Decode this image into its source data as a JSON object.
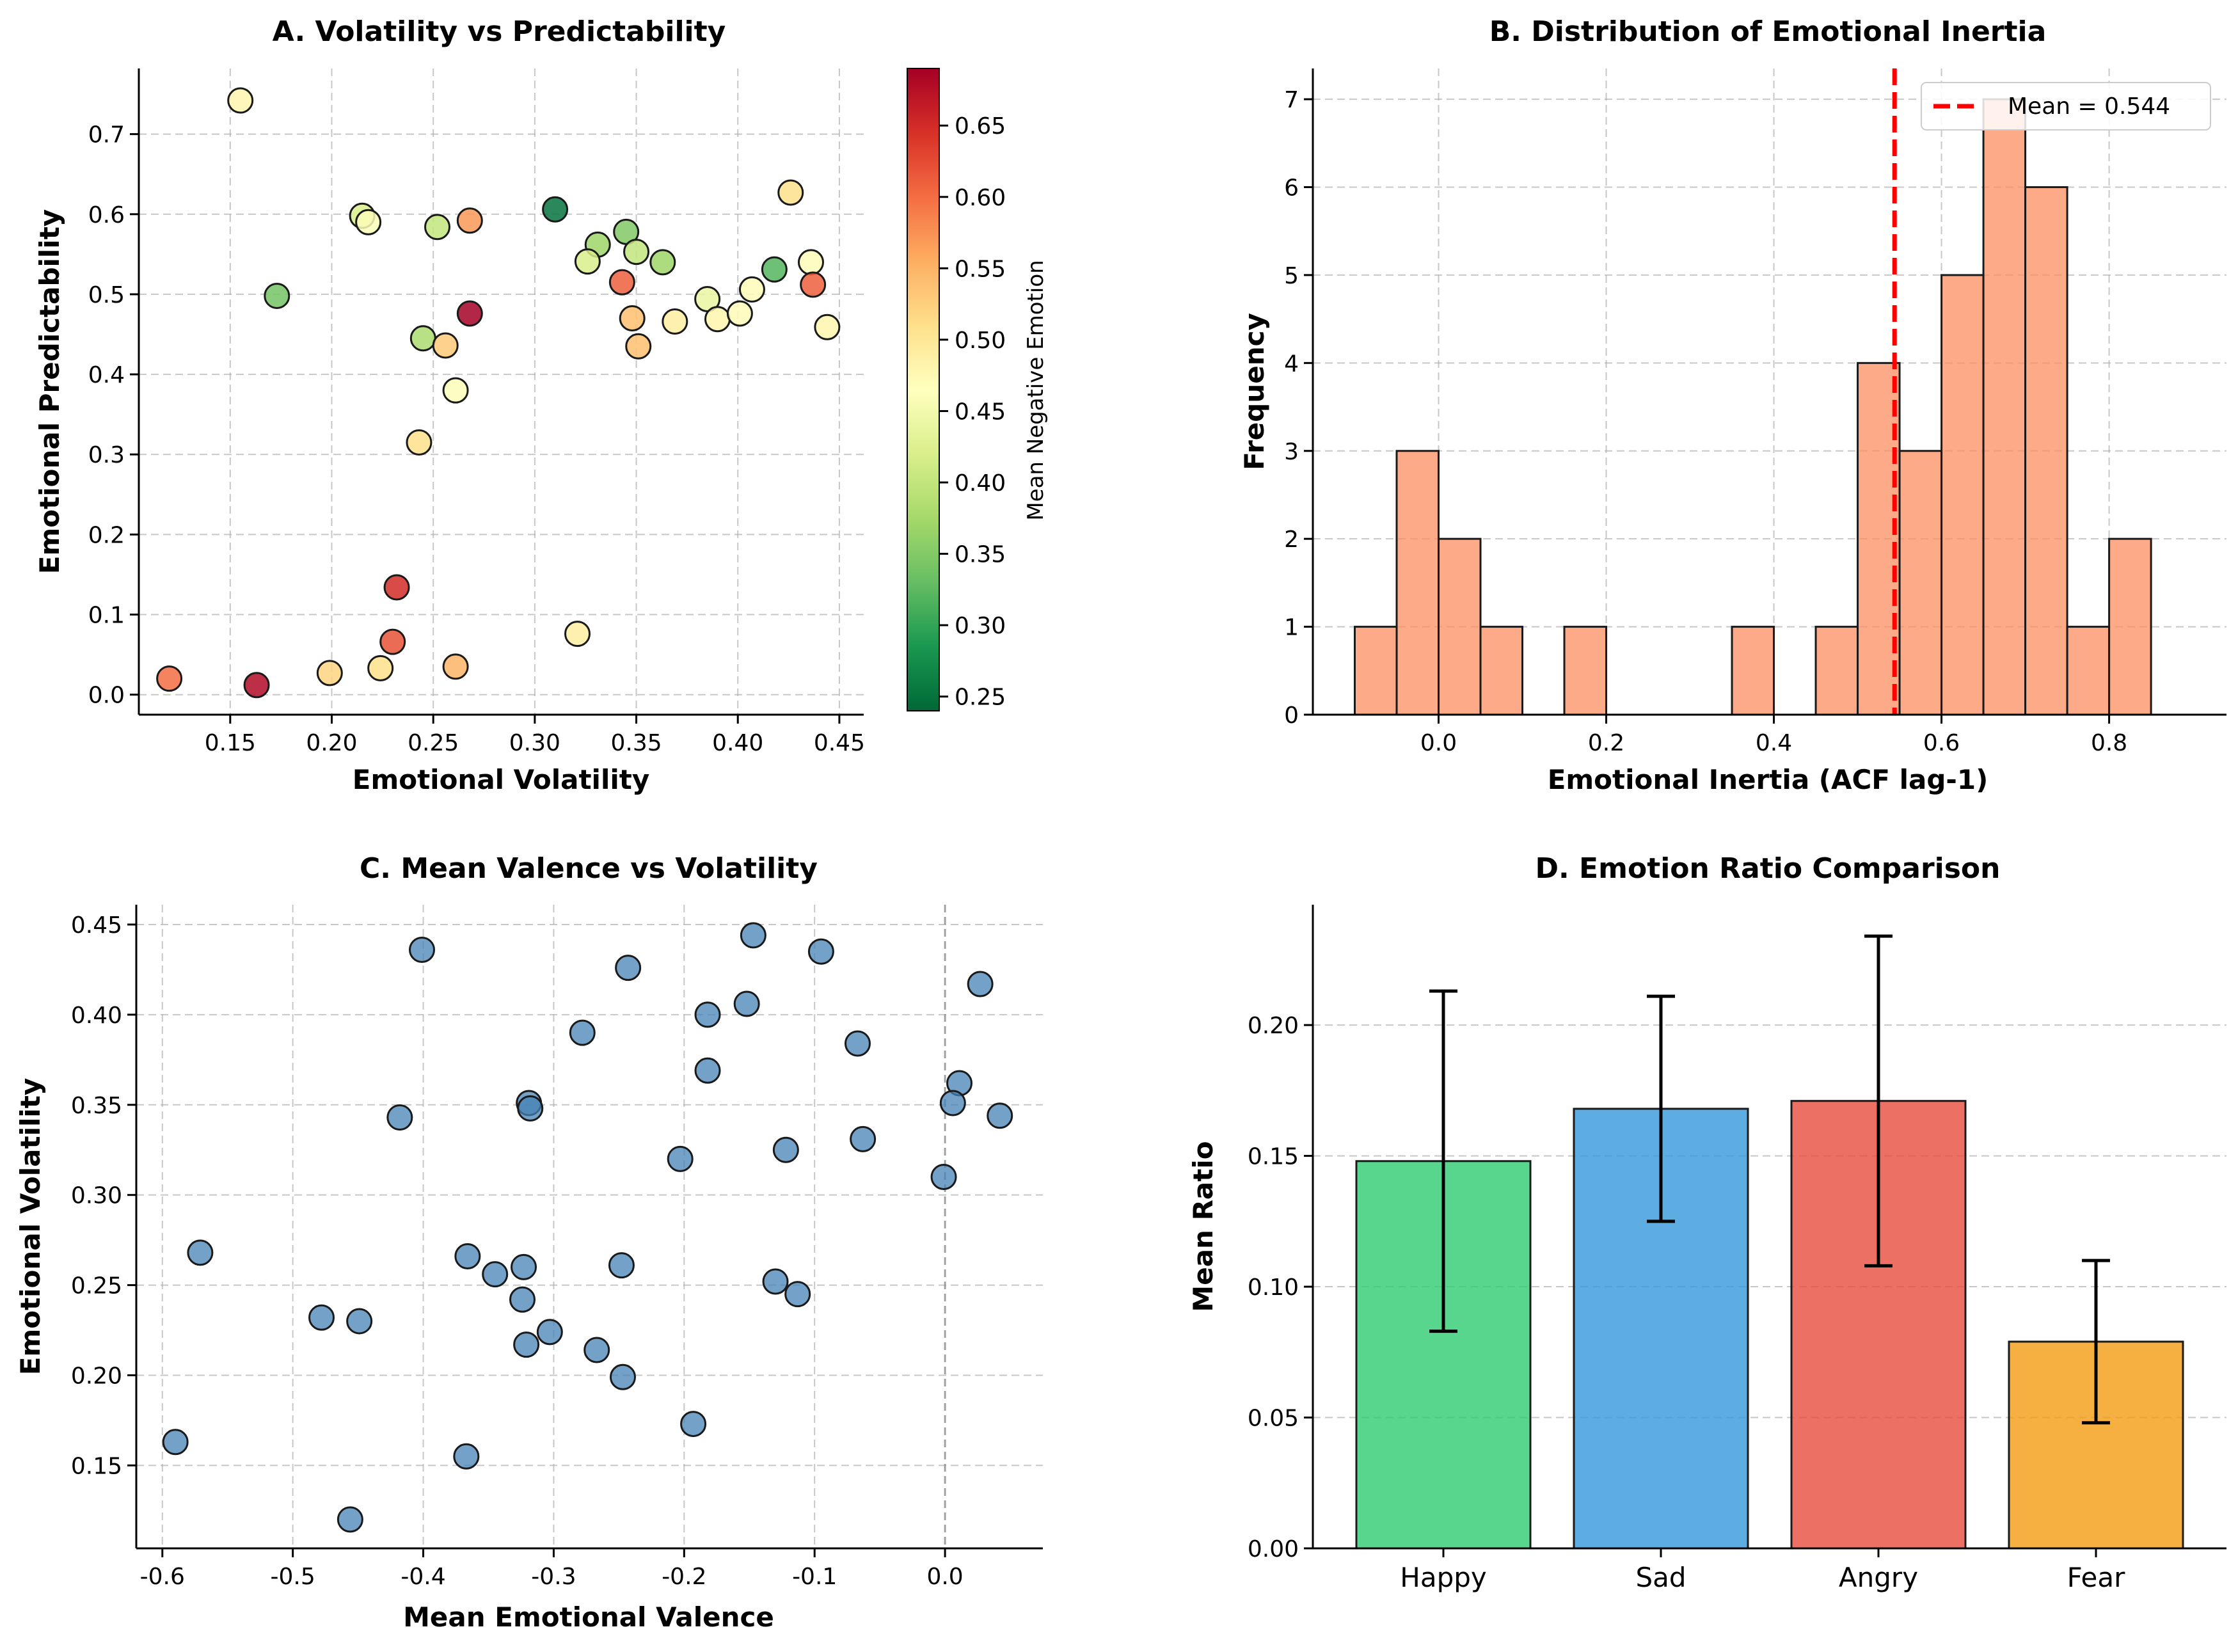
{
  "chart_data": [
    {
      "id": "A",
      "type": "scatter",
      "title": "A. Volatility vs Predictability",
      "xlabel": "Emotional Volatility",
      "ylabel": "Emotional Predictability",
      "xlim": [
        0.105,
        0.462
      ],
      "ylim": [
        -0.025,
        0.782
      ],
      "xticks": [
        "0.15",
        "0.20",
        "0.25",
        "0.30",
        "0.35",
        "0.40",
        "0.45"
      ],
      "xtick_values": [
        0.15,
        0.2,
        0.25,
        0.3,
        0.35,
        0.4,
        0.45
      ],
      "yticks": [
        "0.0",
        "0.1",
        "0.2",
        "0.3",
        "0.4",
        "0.5",
        "0.6",
        "0.7"
      ],
      "ytick_values": [
        0.0,
        0.1,
        0.2,
        0.3,
        0.4,
        0.5,
        0.6,
        0.7
      ],
      "colorbar": {
        "label": "Mean Negative Emotion",
        "colormap": "RdYlGn_r",
        "range": [
          0.24,
          0.69
        ],
        "ticks": [
          "0.25",
          "0.30",
          "0.35",
          "0.40",
          "0.45",
          "0.50",
          "0.55",
          "0.60",
          "0.65"
        ],
        "tick_values": [
          0.25,
          0.3,
          0.35,
          0.4,
          0.45,
          0.5,
          0.55,
          0.6,
          0.65
        ]
      },
      "points": [
        {
          "x": 0.155,
          "y": 0.742,
          "c": 0.48
        },
        {
          "x": 0.215,
          "y": 0.598,
          "c": 0.42
        },
        {
          "x": 0.218,
          "y": 0.59,
          "c": 0.46
        },
        {
          "x": 0.173,
          "y": 0.498,
          "c": 0.34
        },
        {
          "x": 0.252,
          "y": 0.584,
          "c": 0.4
        },
        {
          "x": 0.268,
          "y": 0.592,
          "c": 0.57
        },
        {
          "x": 0.31,
          "y": 0.606,
          "c": 0.25
        },
        {
          "x": 0.268,
          "y": 0.476,
          "c": 0.69
        },
        {
          "x": 0.245,
          "y": 0.445,
          "c": 0.38
        },
        {
          "x": 0.256,
          "y": 0.436,
          "c": 0.53
        },
        {
          "x": 0.261,
          "y": 0.38,
          "c": 0.46
        },
        {
          "x": 0.243,
          "y": 0.315,
          "c": 0.51
        },
        {
          "x": 0.331,
          "y": 0.562,
          "c": 0.37
        },
        {
          "x": 0.326,
          "y": 0.541,
          "c": 0.42
        },
        {
          "x": 0.345,
          "y": 0.578,
          "c": 0.35
        },
        {
          "x": 0.35,
          "y": 0.553,
          "c": 0.4
        },
        {
          "x": 0.363,
          "y": 0.54,
          "c": 0.37
        },
        {
          "x": 0.343,
          "y": 0.515,
          "c": 0.61
        },
        {
          "x": 0.348,
          "y": 0.47,
          "c": 0.54
        },
        {
          "x": 0.351,
          "y": 0.435,
          "c": 0.54
        },
        {
          "x": 0.369,
          "y": 0.466,
          "c": 0.49
        },
        {
          "x": 0.385,
          "y": 0.494,
          "c": 0.44
        },
        {
          "x": 0.39,
          "y": 0.469,
          "c": 0.48
        },
        {
          "x": 0.401,
          "y": 0.476,
          "c": 0.47
        },
        {
          "x": 0.407,
          "y": 0.506,
          "c": 0.47
        },
        {
          "x": 0.418,
          "y": 0.531,
          "c": 0.32
        },
        {
          "x": 0.426,
          "y": 0.627,
          "c": 0.51
        },
        {
          "x": 0.436,
          "y": 0.54,
          "c": 0.47
        },
        {
          "x": 0.437,
          "y": 0.512,
          "c": 0.61
        },
        {
          "x": 0.444,
          "y": 0.459,
          "c": 0.48
        },
        {
          "x": 0.232,
          "y": 0.134,
          "c": 0.65
        },
        {
          "x": 0.23,
          "y": 0.066,
          "c": 0.62
        },
        {
          "x": 0.321,
          "y": 0.076,
          "c": 0.49
        },
        {
          "x": 0.12,
          "y": 0.02,
          "c": 0.6
        },
        {
          "x": 0.163,
          "y": 0.012,
          "c": 0.68
        },
        {
          "x": 0.199,
          "y": 0.027,
          "c": 0.52
        },
        {
          "x": 0.224,
          "y": 0.033,
          "c": 0.51
        },
        {
          "x": 0.261,
          "y": 0.035,
          "c": 0.55
        }
      ]
    },
    {
      "id": "B",
      "type": "bar",
      "subtype": "histogram",
      "title": "B. Distribution of Emotional Inertia",
      "xlabel": "Emotional Inertia (ACF lag-1)",
      "ylabel": "Frequency",
      "xlim": [
        -0.15,
        0.94
      ],
      "ylim": [
        0,
        7.35
      ],
      "xticks": [
        "0.0",
        "0.2",
        "0.4",
        "0.6",
        "0.8"
      ],
      "xtick_values": [
        0.0,
        0.2,
        0.4,
        0.6,
        0.8
      ],
      "yticks": [
        "0",
        "1",
        "2",
        "3",
        "4",
        "5",
        "6",
        "7"
      ],
      "ytick_values": [
        0,
        1,
        2,
        3,
        4,
        5,
        6,
        7
      ],
      "bin_start": -0.1,
      "bin_width": 0.05,
      "counts": [
        1,
        3,
        2,
        1,
        0,
        1,
        0,
        0,
        0,
        1,
        0,
        1,
        4,
        3,
        5,
        7,
        6,
        1,
        2
      ],
      "bar_color": "#fc8d62",
      "mean_line": {
        "value": 0.544,
        "color": "#ff0000"
      },
      "legend": {
        "label": "Mean = 0.544",
        "position": "top-right"
      }
    },
    {
      "id": "C",
      "type": "scatter",
      "title": "C. Mean Valence vs Volatility",
      "xlabel": "Mean Emotional Valence",
      "ylabel": "Emotional Volatility",
      "xlim": [
        -0.62,
        0.075
      ],
      "ylim": [
        0.104,
        0.461
      ],
      "xticks": [
        "-0.6",
        "-0.5",
        "-0.4",
        "-0.3",
        "-0.2",
        "-0.1",
        "0.0"
      ],
      "xtick_values": [
        -0.6,
        -0.5,
        -0.4,
        -0.3,
        -0.2,
        -0.1,
        0.0
      ],
      "yticks": [
        "0.15",
        "0.20",
        "0.25",
        "0.30",
        "0.35",
        "0.40",
        "0.45"
      ],
      "ytick_values": [
        0.15,
        0.2,
        0.25,
        0.3,
        0.35,
        0.4,
        0.45
      ],
      "vline_at": 0.0,
      "point_color": "#4682b4",
      "points": [
        {
          "x": -0.401,
          "y": 0.436
        },
        {
          "x": -0.243,
          "y": 0.426
        },
        {
          "x": -0.147,
          "y": 0.444
        },
        {
          "x": -0.095,
          "y": 0.435
        },
        {
          "x": -0.152,
          "y": 0.406
        },
        {
          "x": -0.182,
          "y": 0.4
        },
        {
          "x": -0.278,
          "y": 0.39
        },
        {
          "x": 0.027,
          "y": 0.417
        },
        {
          "x": -0.067,
          "y": 0.384
        },
        {
          "x": -0.182,
          "y": 0.369
        },
        {
          "x": 0.011,
          "y": 0.362
        },
        {
          "x": -0.319,
          "y": 0.351
        },
        {
          "x": -0.318,
          "y": 0.348
        },
        {
          "x": -0.418,
          "y": 0.343
        },
        {
          "x": 0.006,
          "y": 0.351
        },
        {
          "x": 0.042,
          "y": 0.344
        },
        {
          "x": -0.063,
          "y": 0.331
        },
        {
          "x": -0.122,
          "y": 0.325
        },
        {
          "x": -0.203,
          "y": 0.32
        },
        {
          "x": -0.001,
          "y": 0.31
        },
        {
          "x": -0.571,
          "y": 0.268
        },
        {
          "x": -0.366,
          "y": 0.266
        },
        {
          "x": -0.345,
          "y": 0.256
        },
        {
          "x": -0.323,
          "y": 0.26
        },
        {
          "x": -0.248,
          "y": 0.261
        },
        {
          "x": -0.13,
          "y": 0.252
        },
        {
          "x": -0.113,
          "y": 0.245
        },
        {
          "x": -0.324,
          "y": 0.242
        },
        {
          "x": -0.478,
          "y": 0.232
        },
        {
          "x": -0.449,
          "y": 0.23
        },
        {
          "x": -0.303,
          "y": 0.224
        },
        {
          "x": -0.321,
          "y": 0.217
        },
        {
          "x": -0.267,
          "y": 0.214
        },
        {
          "x": -0.247,
          "y": 0.199
        },
        {
          "x": -0.193,
          "y": 0.173
        },
        {
          "x": -0.59,
          "y": 0.163
        },
        {
          "x": -0.367,
          "y": 0.155
        },
        {
          "x": -0.456,
          "y": 0.12
        }
      ]
    },
    {
      "id": "D",
      "type": "bar",
      "title": "D. Emotion Ratio Comparison",
      "xlabel": "",
      "ylabel": "Mean Ratio",
      "ylim": [
        0,
        0.246
      ],
      "yticks": [
        "0.00",
        "0.05",
        "0.10",
        "0.15",
        "0.20"
      ],
      "ytick_values": [
        0.0,
        0.05,
        0.1,
        0.15,
        0.2
      ],
      "categories": [
        "Happy",
        "Sad",
        "Angry",
        "Fear"
      ],
      "values": [
        0.148,
        0.168,
        0.171,
        0.079
      ],
      "errors": [
        0.065,
        0.043,
        0.063,
        0.031
      ],
      "colors": [
        "#2ecc71",
        "#3498db",
        "#e74c3c",
        "#f39c12"
      ]
    }
  ]
}
